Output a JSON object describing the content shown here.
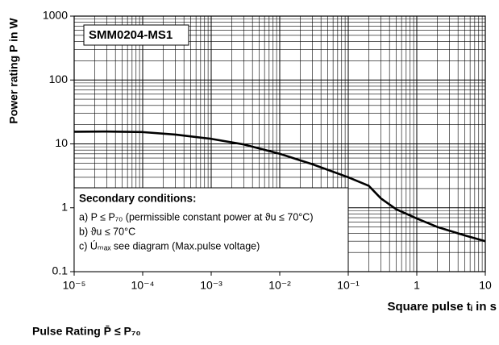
{
  "chart_data": {
    "type": "line",
    "title": "SMM0204-MS1",
    "ylabel": "Power rating P in W",
    "xlabel": "Square pulse tᵢ  in s",
    "footer": "Pulse Rating P̄ ≤ P₇₀",
    "annotation": {
      "heading": "Secondary conditions:",
      "lines": [
        "a) P ≤ P₇₀ (permissible constant power at ϑu ≤ 70°C)",
        "b) ϑu ≤ 70°C",
        "c) Úₘₐₓ see diagram (Max.pulse voltage)"
      ]
    },
    "x": [
      1e-05,
      3e-05,
      0.0001,
      0.0003,
      0.001,
      0.003,
      0.01,
      0.03,
      0.1,
      0.2,
      0.3,
      0.5,
      1,
      2,
      5,
      10
    ],
    "series": [
      {
        "name": "SMM0204-MS1",
        "color": "#000000",
        "values": [
          15.5,
          15.6,
          15.3,
          14,
          12,
          9.8,
          7,
          4.8,
          3,
          2.2,
          1.4,
          0.95,
          0.68,
          0.5,
          0.37,
          0.3
        ]
      }
    ],
    "xscale": "log",
    "yscale": "log",
    "xlim": [
      1e-05,
      10
    ],
    "ylim": [
      0.1,
      1000
    ],
    "xticks": [
      {
        "value": 1e-05,
        "label": "10⁻⁵"
      },
      {
        "value": 0.0001,
        "label": "10⁻⁴"
      },
      {
        "value": 0.001,
        "label": "10⁻³"
      },
      {
        "value": 0.01,
        "label": "10⁻²"
      },
      {
        "value": 0.1,
        "label": "10⁻¹"
      },
      1,
      10
    ],
    "yticks": [
      0.1,
      1,
      10,
      100,
      1000
    ],
    "grid": true,
    "minor_grid": true
  }
}
